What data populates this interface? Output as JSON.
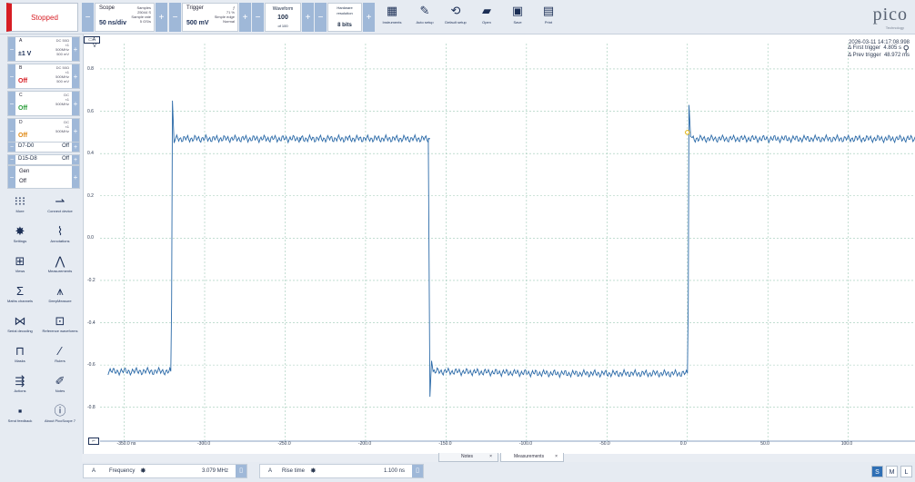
{
  "toolbar": {
    "run_state": "Stopped",
    "scope": {
      "title": "Scope",
      "value": "50 ns/div",
      "samples_label": "Samples",
      "samples_value": "25044 S",
      "rate_label": "Sample rate",
      "rate_value": "5 GS/s"
    },
    "trigger": {
      "title": "Trigger",
      "value": "500 mV",
      "pct": "71 %",
      "type": "Simple edge",
      "mode": "Normal"
    },
    "waveform": {
      "title": "Waveform",
      "value": "100",
      "sub": "of 100"
    },
    "hardware": {
      "title": "Hardware resolution",
      "value": "8 bits"
    },
    "tools": [
      {
        "label": "Instruments",
        "icon": "instruments-icon",
        "glyph": "▦"
      },
      {
        "label": "Auto setup",
        "icon": "auto-setup-icon",
        "glyph": "✎"
      },
      {
        "label": "Default setup",
        "icon": "default-setup-icon",
        "glyph": "⟲"
      },
      {
        "label": "Open",
        "icon": "folder-icon",
        "glyph": "▰"
      },
      {
        "label": "Save",
        "icon": "save-icon",
        "glyph": "▣"
      },
      {
        "label": "Print",
        "icon": "print-icon",
        "glyph": "▤"
      }
    ],
    "logo": "pico",
    "logo_sub": "Technology"
  },
  "channels": [
    {
      "name": "A",
      "value": "±1 V",
      "info1": "DC 50Ω",
      "info2": "×1",
      "info3": "500MHz",
      "info4": "500 mV",
      "color": "#1b2e55"
    },
    {
      "name": "B",
      "value": "Off",
      "info1": "DC 50Ω",
      "info2": "×1",
      "info3": "500MHz",
      "info4": "500 mV",
      "color": "#d71d24"
    },
    {
      "name": "C",
      "value": "Off",
      "info1": "DC",
      "info2": "×1",
      "info3": "500MHz",
      "info4": "",
      "color": "#2a9d3a"
    },
    {
      "name": "D",
      "value": "Off",
      "info1": "DC",
      "info2": "×1",
      "info3": "500MHz",
      "info4": "",
      "color": "#e08a16"
    }
  ],
  "digital": [
    {
      "name": "D7-D0",
      "state": "Off"
    },
    {
      "name": "D15-D8",
      "state": "Off"
    }
  ],
  "gen": {
    "name": "Gen",
    "state": "Off"
  },
  "left_tools": [
    {
      "label": "More",
      "icon": "more-grid-icon",
      "glyph": "⁝⁝⁝"
    },
    {
      "label": "Connect device",
      "icon": "usb-icon",
      "glyph": "⇀"
    },
    {
      "label": "Settings",
      "icon": "settings-gear-icon",
      "glyph": "✸"
    },
    {
      "label": "Annotations",
      "icon": "annotations-icon",
      "glyph": "⌇"
    },
    {
      "label": "Views",
      "icon": "views-icon",
      "glyph": "⊞"
    },
    {
      "label": "Measurements",
      "icon": "measurements-icon",
      "glyph": "⋀"
    },
    {
      "label": "Maths channels",
      "icon": "sigma-icon",
      "glyph": "Σ"
    },
    {
      "label": "DeepMeasure",
      "icon": "deepmeasure-icon",
      "glyph": "⩚"
    },
    {
      "label": "Serial decoding",
      "icon": "serial-decoding-icon",
      "glyph": "⋈"
    },
    {
      "label": "Reference waveforms",
      "icon": "reference-waveforms-icon",
      "glyph": "⊡"
    },
    {
      "label": "Masks",
      "icon": "masks-icon",
      "glyph": "⊓"
    },
    {
      "label": "Rulers",
      "icon": "ruler-icon",
      "glyph": "⁄"
    },
    {
      "label": "Actions",
      "icon": "actions-icon",
      "glyph": "⇶"
    },
    {
      "label": "Notes",
      "icon": "notes-icon",
      "glyph": "✐"
    },
    {
      "label": "Send feedback",
      "icon": "feedback-icon",
      "glyph": "▪"
    },
    {
      "label": "About PicoScope 7",
      "icon": "info-icon",
      "glyph": "ⓘ"
    }
  ],
  "plot": {
    "axis_unit": "V",
    "timestamp": "2026-03-11 14:17:08.998",
    "first_trigger_label": "Δ First trigger",
    "first_trigger_value": "4.805 s",
    "prev_trigger_label": "Δ Prev trigger",
    "prev_trigger_value": "48.972 ms"
  },
  "chart_data": {
    "type": "line",
    "title": "",
    "xlabel": "",
    "ylabel": "V",
    "x_ticks": [
      "-350.0 ns",
      "-300.0",
      "-250.0",
      "-200.0",
      "-150.0",
      "-100.0",
      "-50.0",
      "0.0",
      "50.0",
      "100.0"
    ],
    "y_ticks": [
      "0.8",
      "0.6",
      "0.4",
      "0.2",
      "0.0",
      "-0.2",
      "-0.4",
      "-0.6",
      "-0.8"
    ],
    "xlim": [
      -365,
      142
    ],
    "ylim": [
      -0.96,
      0.92
    ],
    "x_unit": "ns",
    "grid": true,
    "series": [
      {
        "x": [
          -360,
          -321,
          -320.5,
          -320,
          -319,
          -318,
          -240,
          -241,
          -160,
          -161,
          -160,
          -159,
          -158,
          -80,
          0,
          0.5,
          1,
          2,
          3,
          142
        ],
        "y": [
          -0.63,
          -0.63,
          -0.3,
          0.65,
          0.45,
          0.47,
          0.47,
          0.47,
          0.47,
          0.47,
          -0.75,
          -0.58,
          -0.63,
          -0.64,
          -0.64,
          -0.3,
          0.63,
          0.48,
          0.47,
          0.47
        ]
      }
    ],
    "trigger_marker": {
      "x": 0,
      "y": 0.5
    }
  },
  "tabs": [
    {
      "label": "Notes"
    },
    {
      "label": "Measurements"
    }
  ],
  "measurements": [
    {
      "channel": "A",
      "name": "Frequency",
      "value": "3.079 MHz"
    },
    {
      "channel": "A",
      "name": "Rise time",
      "value": "1.100 ns"
    }
  ],
  "size_buttons": [
    "S",
    "M",
    "L"
  ]
}
